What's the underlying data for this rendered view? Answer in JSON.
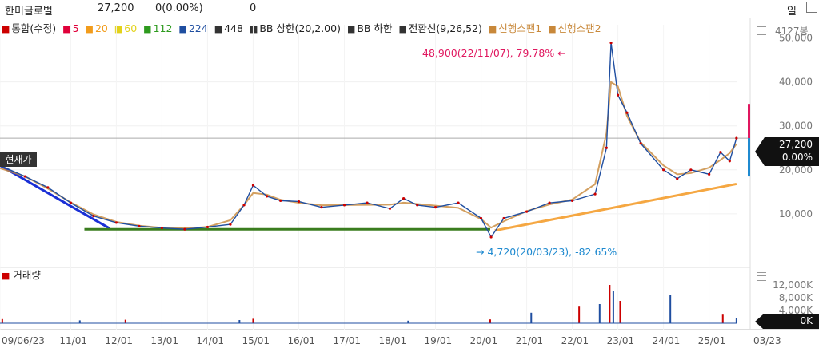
{
  "header": {
    "name": "한미글로벌",
    "price": "27,200",
    "change": "0(0.00%)",
    "volume": "0",
    "period": "일"
  },
  "legend": [
    {
      "label": "통합(수정)",
      "color": "#cc0000"
    },
    {
      "label": "5",
      "color": "#e0003a"
    },
    {
      "label": "20",
      "color": "#f29c1c"
    },
    {
      "label": "60",
      "color": "#e3d21a"
    },
    {
      "label": "112",
      "color": "#2e9a1e"
    },
    {
      "label": "224",
      "color": "#1f4ea0"
    },
    {
      "label": "448",
      "color": "#333333"
    },
    {
      "label": "BB 상한(20,2.00)",
      "color": "#333333"
    },
    {
      "label": "BB 하한",
      "color": "#333333"
    },
    {
      "label": "전환선(9,26,52)",
      "color": "#333333"
    },
    {
      "label": "선행스팬1",
      "color": "#c8883a"
    },
    {
      "label": "선행스팬2",
      "color": "#c8883a"
    }
  ],
  "volume_title": "거래량",
  "current_price_label": "현재가",
  "annotations": {
    "high": "48,900(22/11/07), 79.78%",
    "low": "4,720(20/03/23), -82.65%",
    "high_arrow": "←",
    "low_arrow": "→"
  },
  "price_tag": {
    "price": "27,200",
    "pct": "0.00%"
  },
  "volume_tag": "0K",
  "price_axis_extra": "4127봉",
  "chart_data": {
    "type": "line",
    "title": "한미글로벌",
    "x_start": "09/06/23",
    "x_end": "25/05",
    "x_tick_labels": [
      "09/06/23",
      "11/01",
      "12/01",
      "13/01",
      "14/01",
      "15/01",
      "16/01",
      "17/01",
      "18/01",
      "19/01",
      "20/01",
      "21/01",
      "22/01",
      "23/01",
      "24/01",
      "25/01",
      "03/23"
    ],
    "price_axis_ticks": [
      "50,000",
      "40,000",
      "30,000",
      "20,000",
      "10,000"
    ],
    "price_axis_values": [
      50000,
      40000,
      30000,
      20000,
      10000
    ],
    "ylim": [
      0,
      53000
    ],
    "volume_axis_ticks": [
      "12,000K",
      "8,000K",
      "4,000K"
    ],
    "volume_axis_values": [
      12000,
      8000,
      4000
    ],
    "volume_ylim": [
      0,
      15000
    ],
    "current_price": 27200,
    "highest": {
      "date": "22/11/07",
      "value": 48900,
      "pct": 79.78
    },
    "lowest": {
      "date": "20/03/23",
      "value": 4720,
      "pct": -82.65
    },
    "series": [
      {
        "name": "통합(수정)",
        "t": [
          2009.45,
          2010.0,
          2010.5,
          2011.0,
          2011.5,
          2012.0,
          2012.5,
          2013.0,
          2013.5,
          2014.0,
          2014.5,
          2014.8,
          2015.0,
          2015.3,
          2015.6,
          2016.0,
          2016.5,
          2017.0,
          2017.5,
          2018.0,
          2018.3,
          2018.6,
          2019.0,
          2019.5,
          2020.0,
          2020.22,
          2020.5,
          2021.0,
          2021.5,
          2022.0,
          2022.5,
          2022.75,
          2022.85,
          2023.0,
          2023.2,
          2023.5,
          2024.0,
          2024.3,
          2024.6,
          2025.0,
          2025.25,
          2025.45,
          2025.6
        ],
        "values": [
          21000,
          18500,
          16000,
          12500,
          9500,
          8000,
          7200,
          6800,
          6500,
          7000,
          7600,
          12000,
          16500,
          14000,
          13000,
          12800,
          11500,
          12000,
          12500,
          11200,
          13500,
          12000,
          11500,
          12500,
          9000,
          4720,
          9000,
          10500,
          12500,
          13000,
          14500,
          25000,
          48900,
          37000,
          33000,
          26000,
          20000,
          18000,
          20000,
          19000,
          24000,
          22000,
          27200
        ]
      }
    ],
    "volume": {
      "t": [
        2009.5,
        2011.2,
        2012.2,
        2014.7,
        2015.0,
        2018.4,
        2020.2,
        2021.1,
        2022.15,
        2022.6,
        2022.82,
        2022.9,
        2023.05,
        2024.15,
        2025.3,
        2025.6
      ],
      "values": [
        1300,
        900,
        1100,
        1000,
        1400,
        800,
        1200,
        3300,
        5200,
        6000,
        12000,
        10000,
        7000,
        9000,
        2700,
        1500
      ]
    },
    "trendlines": [
      {
        "color": "#1a2fd6",
        "from": {
          "t": 2009.45,
          "value": 21000
        },
        "to": {
          "t": 2011.85,
          "value": 6700
        }
      },
      {
        "color": "#3a7d1f",
        "from": {
          "t": 2011.3,
          "value": 6500
        },
        "to": {
          "t": 2020.2,
          "value": 6500
        }
      },
      {
        "color": "#f5a742",
        "from": {
          "t": 2020.3,
          "value": 6200
        },
        "to": {
          "t": 2025.6,
          "value": 16800
        }
      }
    ],
    "grid": true
  }
}
